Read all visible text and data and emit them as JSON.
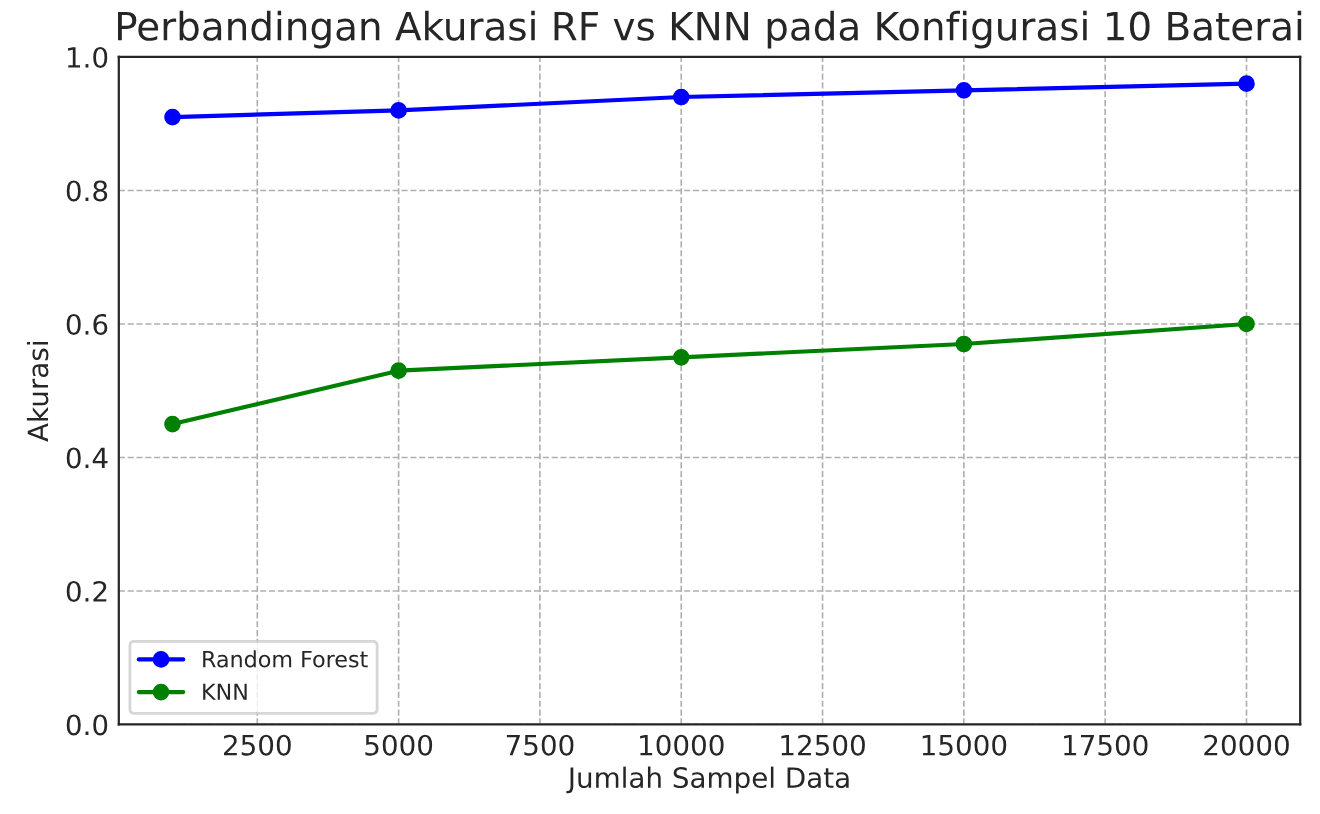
{
  "chart_data": {
    "type": "line",
    "title": "Perbandingan Akurasi RF vs KNN pada Konfigurasi 10 Baterai",
    "xlabel": "Jumlah Sampel Data",
    "ylabel": "Akurasi",
    "x": [
      1000,
      5000,
      10000,
      15000,
      20000
    ],
    "series": [
      {
        "name": "Random Forest",
        "color": "#0000ff",
        "values": [
          0.91,
          0.92,
          0.94,
          0.95,
          0.96
        ]
      },
      {
        "name": "KNN",
        "color": "#008000",
        "values": [
          0.45,
          0.53,
          0.55,
          0.57,
          0.6
        ]
      }
    ],
    "xlim": [
      50,
      20950
    ],
    "xticks": [
      2500,
      5000,
      7500,
      10000,
      12500,
      15000,
      17500,
      20000
    ],
    "ylim": [
      0.0,
      1.0
    ],
    "yticks": [
      {
        "value": 0,
        "label": "0.0"
      },
      {
        "value": 0.2,
        "label": "0.2"
      },
      {
        "value": 0.4,
        "label": "0.4"
      },
      {
        "value": 0.6,
        "label": "0.6"
      },
      {
        "value": 0.8,
        "label": "0.8"
      },
      {
        "value": 1.0,
        "label": "1.0"
      }
    ],
    "grid": true,
    "legend": "bottom left",
    "marker": "circle",
    "line_style": "solid"
  }
}
